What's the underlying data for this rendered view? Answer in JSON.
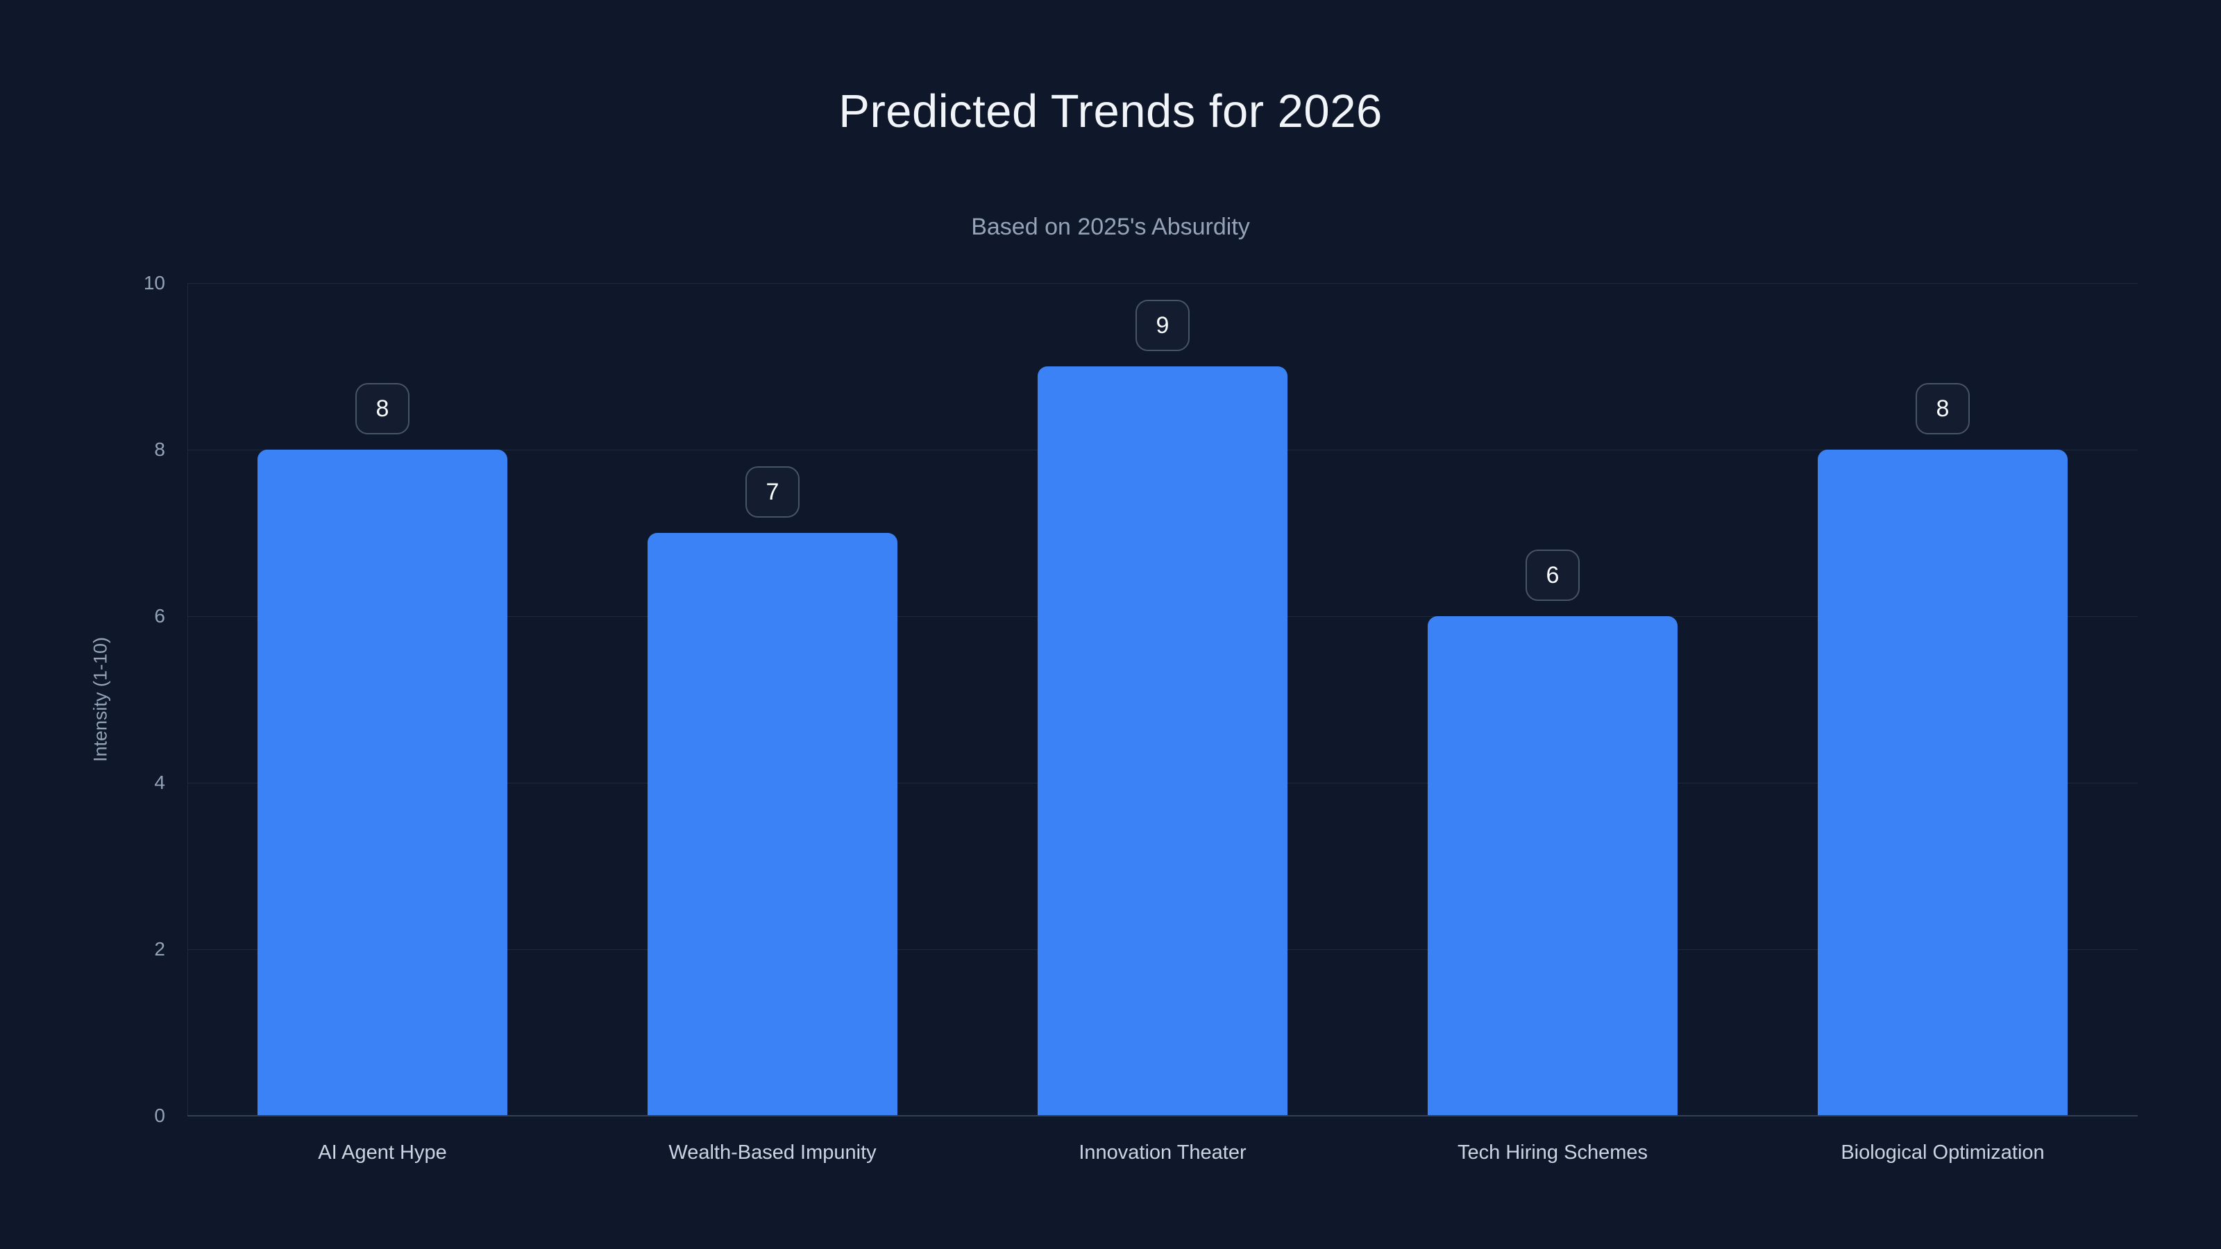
{
  "header": {
    "title": "Predicted Trends for 2026",
    "subtitle": "Based on 2025's Absurdity"
  },
  "chart_data": {
    "type": "bar",
    "title": "Predicted Trends for 2026",
    "subtitle": "Based on 2025's Absurdity",
    "categories": [
      "AI Agent Hype",
      "Wealth-Based Impunity",
      "Innovation Theater",
      "Tech Hiring Schemes",
      "Biological Optimization"
    ],
    "values": [
      8,
      7,
      9,
      6,
      8
    ],
    "data_labels": [
      "8",
      "7",
      "9",
      "6",
      "8"
    ],
    "xlabel": "",
    "ylabel": "Intensity (1-10)",
    "ylim": [
      0,
      10
    ],
    "yticks": [
      0,
      2,
      4,
      6,
      8,
      10
    ],
    "grid": "horizontal-only",
    "legend_position": "none",
    "colors": {
      "bar_fill": "#3b82f6",
      "background": "#0f172a",
      "gridline": "#1e293b",
      "baseline": "#334155",
      "tick_label": "#94a3b8",
      "category_label": "#cbd5e1",
      "title": "#f1f5f9",
      "subtitle": "#94a3b8",
      "badge_border": "#475569",
      "badge_text": "#f8fafc"
    }
  }
}
